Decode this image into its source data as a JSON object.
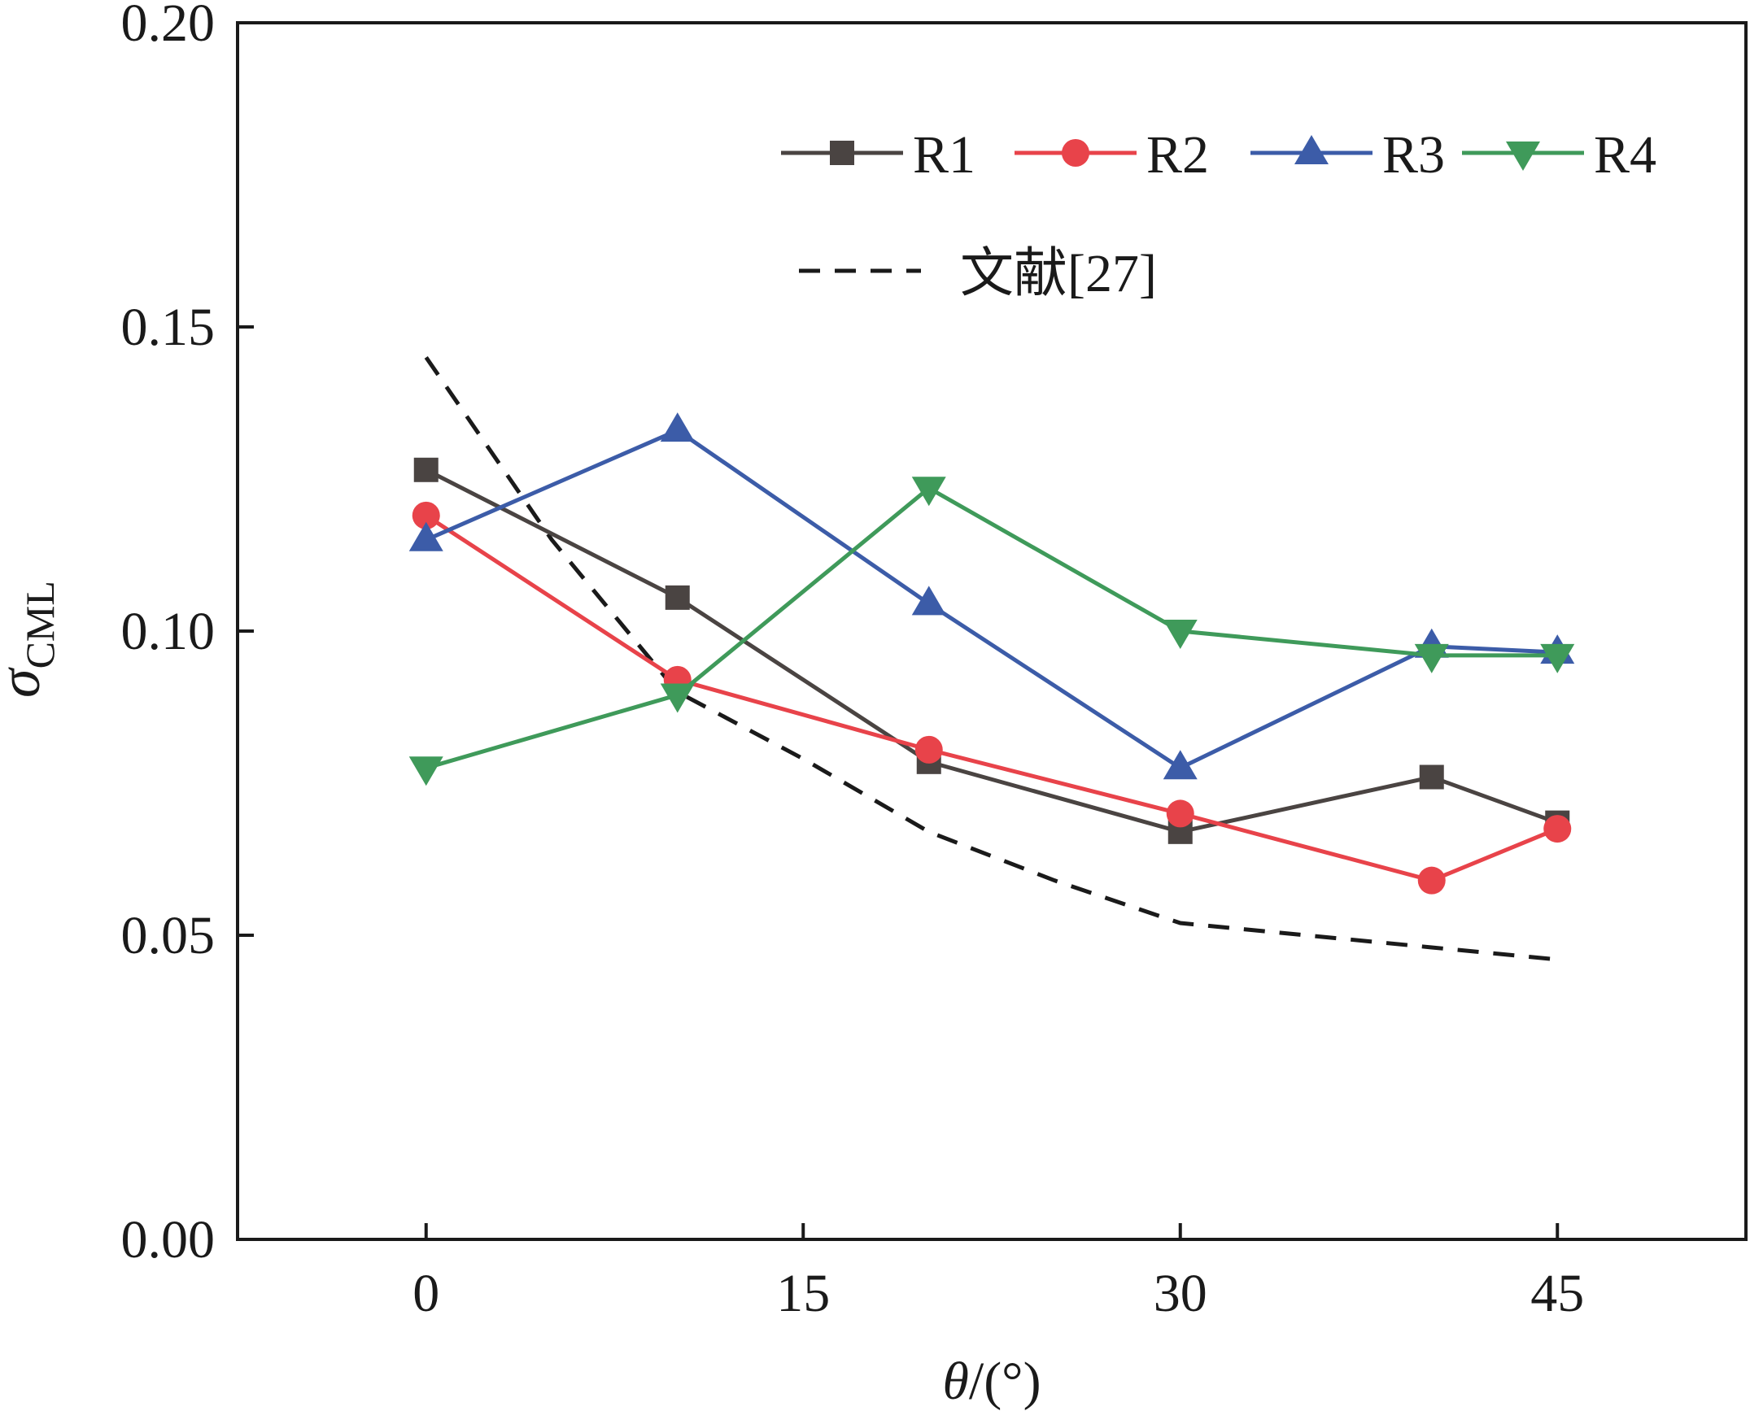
{
  "chart_data": {
    "type": "line",
    "title": "",
    "xlabel_symbol": "θ",
    "xlabel_unit": "/(°)",
    "ylabel_symbol": "σ",
    "ylabel_subscript": "CML",
    "xlim": [
      -7.5,
      52.5
    ],
    "ylim": [
      0,
      0.2
    ],
    "xticks": [
      0,
      15,
      30,
      45
    ],
    "xtick_labels": [
      "0",
      "15",
      "30",
      "45"
    ],
    "yticks": [
      0,
      0.05,
      0.1,
      0.15,
      0.2
    ],
    "ytick_labels": [
      "0.00",
      "0.05",
      "0.10",
      "0.15",
      "0.20"
    ],
    "grid": false,
    "legend_position": "top-right",
    "x": [
      0,
      10,
      20,
      30,
      40,
      45
    ],
    "series": [
      {
        "name": "R1",
        "color": "#4a4442",
        "marker": "square",
        "values": [
          0.1265,
          0.1055,
          0.0785,
          0.067,
          0.076,
          0.0685
        ]
      },
      {
        "name": "R2",
        "color": "#e8434a",
        "marker": "circle",
        "values": [
          0.119,
          0.092,
          0.0805,
          0.07,
          0.059,
          0.0675
        ]
      },
      {
        "name": "R3",
        "color": "#3c5ca8",
        "marker": "triangle-up",
        "values": [
          0.115,
          0.133,
          0.1045,
          0.0775,
          0.0975,
          0.0965
        ]
      },
      {
        "name": "R4",
        "color": "#3f9a5a",
        "marker": "triangle-down",
        "values": [
          0.0775,
          0.0895,
          0.1235,
          0.1,
          0.096,
          0.096
        ]
      }
    ],
    "reference": {
      "name": "文献[27]",
      "color": "#1a1a1a",
      "style": "dashed",
      "x": [
        0,
        5,
        10,
        15,
        20,
        25,
        30,
        35,
        40,
        45
      ],
      "values": [
        0.145,
        0.115,
        0.09,
        0.079,
        0.067,
        0.059,
        0.052,
        0.05,
        0.048,
        0.046
      ]
    }
  }
}
